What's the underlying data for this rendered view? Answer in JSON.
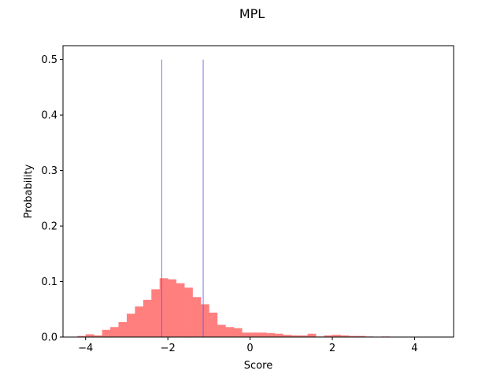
{
  "chart_data": {
    "type": "bar",
    "title": "MPL",
    "xlabel": "Score",
    "ylabel": "Probability",
    "xlim": [
      -4.55,
      4.95
    ],
    "ylim": [
      0,
      0.525
    ],
    "xticks": [
      -4,
      -2,
      0,
      2,
      4
    ],
    "xtick_labels": [
      "−4",
      "−2",
      "0",
      "2",
      "4"
    ],
    "yticks": [
      0.0,
      0.1,
      0.2,
      0.3,
      0.4,
      0.5
    ],
    "ytick_labels": [
      "0.0",
      "0.1",
      "0.2",
      "0.3",
      "0.4",
      "0.5"
    ],
    "grid": false,
    "histogram": {
      "color": "#ff7f7f",
      "bin_width": 0.2,
      "bins": [
        {
          "x0": -4.2,
          "value": 0.002
        },
        {
          "x0": -4.0,
          "value": 0.005
        },
        {
          "x0": -3.8,
          "value": 0.003
        },
        {
          "x0": -3.6,
          "value": 0.013
        },
        {
          "x0": -3.4,
          "value": 0.018
        },
        {
          "x0": -3.2,
          "value": 0.027
        },
        {
          "x0": -3.0,
          "value": 0.042
        },
        {
          "x0": -2.8,
          "value": 0.055
        },
        {
          "x0": -2.6,
          "value": 0.067
        },
        {
          "x0": -2.4,
          "value": 0.086
        },
        {
          "x0": -2.2,
          "value": 0.106
        },
        {
          "x0": -2.0,
          "value": 0.104
        },
        {
          "x0": -1.8,
          "value": 0.097
        },
        {
          "x0": -1.6,
          "value": 0.089
        },
        {
          "x0": -1.4,
          "value": 0.072
        },
        {
          "x0": -1.2,
          "value": 0.059
        },
        {
          "x0": -1.0,
          "value": 0.044
        },
        {
          "x0": -0.8,
          "value": 0.022
        },
        {
          "x0": -0.6,
          "value": 0.018
        },
        {
          "x0": -0.4,
          "value": 0.016
        },
        {
          "x0": -0.2,
          "value": 0.008
        },
        {
          "x0": 0.0,
          "value": 0.008
        },
        {
          "x0": 0.2,
          "value": 0.008
        },
        {
          "x0": 0.4,
          "value": 0.007
        },
        {
          "x0": 0.6,
          "value": 0.006
        },
        {
          "x0": 0.8,
          "value": 0.004
        },
        {
          "x0": 1.0,
          "value": 0.003
        },
        {
          "x0": 1.2,
          "value": 0.003
        },
        {
          "x0": 1.4,
          "value": 0.006
        },
        {
          "x0": 1.6,
          "value": 0.001
        },
        {
          "x0": 1.8,
          "value": 0.003
        },
        {
          "x0": 2.0,
          "value": 0.004
        },
        {
          "x0": 2.2,
          "value": 0.003
        },
        {
          "x0": 2.4,
          "value": 0.002
        },
        {
          "x0": 2.6,
          "value": 0.002
        },
        {
          "x0": 2.8,
          "value": 0.001
        },
        {
          "x0": 3.0,
          "value": 0.0
        },
        {
          "x0": 3.2,
          "value": 0.001
        }
      ]
    },
    "vertical_lines": {
      "color": "#5555ee",
      "lines": [
        {
          "x": -2.15,
          "y": 0.5
        },
        {
          "x": -1.14,
          "y": 0.5
        }
      ]
    }
  }
}
